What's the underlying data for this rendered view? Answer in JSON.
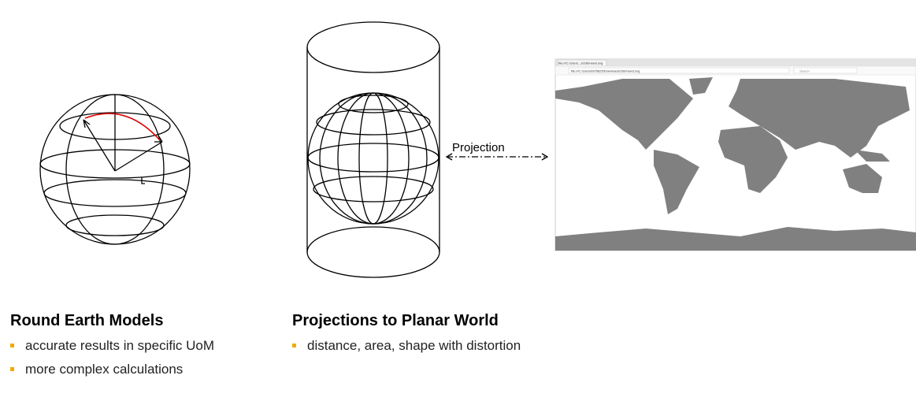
{
  "left": {
    "heading": "Round Earth Models",
    "bullets": [
      "accurate results in specific UoM",
      "more complex calculations"
    ]
  },
  "middle": {
    "heading": "Projections to Planar World",
    "bullets": [
      "distance, area, shape with distortion"
    ]
  },
  "arrow": {
    "label": "Projection"
  },
  "browser": {
    "tab": "file:///C:/Users...s/2dd/new3.svg",
    "url": "file:///C:/Users/I876825/Downloads/2dd/new3.svg",
    "search": "Search"
  }
}
